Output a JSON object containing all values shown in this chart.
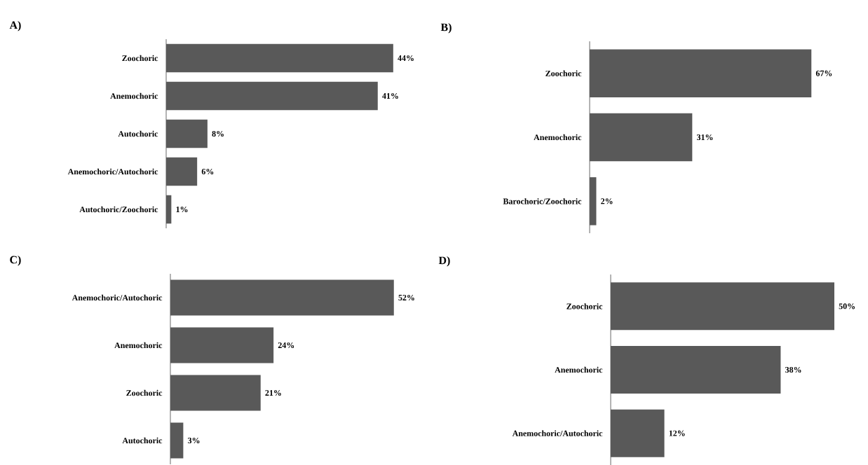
{
  "chart_data": [
    {
      "type": "bar",
      "orientation": "horizontal",
      "title": "A)",
      "categories": [
        "Zoochoric",
        "Anemochoric",
        "Autochoric",
        "Anemochoric/Autochoric",
        "Autochoric/Zoochoric"
      ],
      "values": [
        44,
        41,
        8,
        6,
        1
      ],
      "value_labels": [
        "44%",
        "41%",
        "8%",
        "6%",
        "1%"
      ],
      "color": "#595959"
    },
    {
      "type": "bar",
      "orientation": "horizontal",
      "title": "B)",
      "categories": [
        "Zoochoric",
        "Anemochoric",
        "Barochoric/Zoochoric"
      ],
      "values": [
        67,
        31,
        2
      ],
      "value_labels": [
        "67%",
        "31%",
        "2%"
      ],
      "color": "#595959"
    },
    {
      "type": "bar",
      "orientation": "horizontal",
      "title": "C)",
      "categories": [
        "Anemochoric/Autochoric",
        "Anemochoric",
        "Zoochoric",
        "Autochoric"
      ],
      "values": [
        52,
        24,
        21,
        3
      ],
      "value_labels": [
        "52%",
        "24%",
        "21%",
        "3%"
      ],
      "color": "#595959"
    },
    {
      "type": "bar",
      "orientation": "horizontal",
      "title": "D)",
      "categories": [
        "Zoochoric",
        "Anemochoric",
        "Anemochoric/Autochoric"
      ],
      "values": [
        50,
        38,
        12
      ],
      "value_labels": [
        "50%",
        "38%",
        "12%"
      ],
      "color": "#595959"
    }
  ]
}
